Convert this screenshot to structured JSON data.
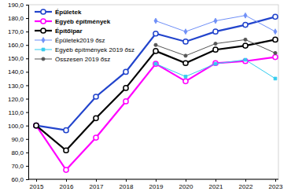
{
  "chart_data": {
    "type": "line",
    "categories": [
      "2015",
      "2016",
      "2017",
      "2018",
      "2019",
      "2020",
      "2021",
      "2022",
      "2023"
    ],
    "series": [
      {
        "name": "Épületek",
        "color": "#2244cc",
        "marker": "circle",
        "line_style": "thick",
        "values": [
          100,
          96.5,
          121.5,
          140,
          168.5,
          162.5,
          170,
          175,
          181
        ]
      },
      {
        "name": "Egyéb építmények",
        "color": "#ff00ff",
        "marker": "circle",
        "line_style": "thick",
        "values": [
          100,
          67,
          91,
          118,
          146,
          133,
          146.5,
          148,
          151
        ]
      },
      {
        "name": "Építőipar",
        "color": "#000000",
        "marker": "circle",
        "line_style": "thick",
        "values": [
          100,
          81.5,
          105.5,
          128,
          155.5,
          146.5,
          156.5,
          159.5,
          164
        ]
      },
      {
        "name": "Épületek2019 ősz",
        "color": "#6f8ff7",
        "marker": "diamond",
        "line_style": "thin",
        "values": [
          null,
          null,
          null,
          null,
          178,
          170,
          178,
          182,
          170
        ]
      },
      {
        "name": "Egyéb építmények 2019 ősz",
        "color": "#33ccee",
        "marker": "square",
        "line_style": "thin",
        "values": [
          null,
          null,
          null,
          null,
          146,
          136.5,
          146,
          149,
          135
        ]
      },
      {
        "name": "Összesen 2019 ősz",
        "color": "#555555",
        "marker": "circle",
        "line_style": "thin",
        "values": [
          null,
          null,
          null,
          null,
          160,
          152,
          161,
          164,
          154
        ]
      }
    ],
    "ylim": [
      60,
      190
    ],
    "yticks": [
      {
        "value": 60,
        "label": "60,0"
      },
      {
        "value": 70,
        "label": "70,0"
      },
      {
        "value": 80,
        "label": "80,0"
      },
      {
        "value": 90,
        "label": "90,0"
      },
      {
        "value": 100,
        "label": "100,0"
      },
      {
        "value": 110,
        "label": "110,0"
      },
      {
        "value": 120,
        "label": "120,0"
      },
      {
        "value": 130,
        "label": "130,0"
      },
      {
        "value": 140,
        "label": "140,0"
      },
      {
        "value": 150,
        "label": "150,0"
      },
      {
        "value": 160,
        "label": "160,0"
      },
      {
        "value": 170,
        "label": "170,0"
      },
      {
        "value": 180,
        "label": "180,0"
      },
      {
        "value": 190,
        "label": "190,0"
      }
    ],
    "grid": false,
    "legend": "top-left"
  }
}
